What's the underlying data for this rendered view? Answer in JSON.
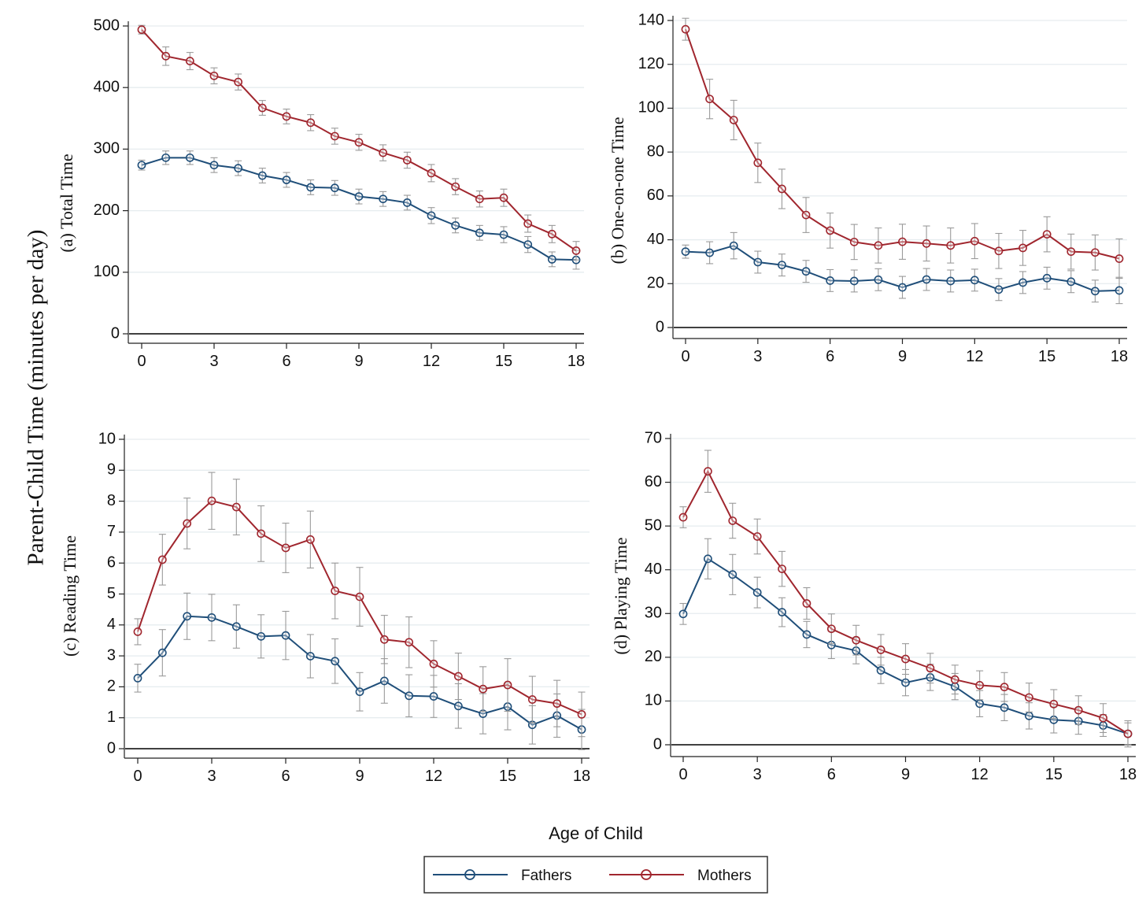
{
  "figure": {
    "y_label": "Parent-Child Time (minutes per day)",
    "x_label": "Age of Child"
  },
  "legend": {
    "placement": "bottom-center",
    "items": [
      {
        "label": "Fathers",
        "color": "#1f4e79"
      },
      {
        "label": "Mothers",
        "color": "#a0262e"
      }
    ]
  },
  "colors": {
    "fathers": "#1f4e79",
    "mothers": "#a0262e",
    "error_bars": "#9a9a9a",
    "gridlines": "#e6ecef",
    "zero_line": "#000000"
  },
  "chart_data": [
    {
      "type": "line",
      "title": "(a) Total Time",
      "x": [
        0,
        1,
        2,
        3,
        4,
        5,
        6,
        7,
        8,
        9,
        10,
        11,
        12,
        13,
        14,
        15,
        16,
        17,
        18
      ],
      "xticks": [
        0,
        3,
        6,
        9,
        12,
        15,
        18
      ],
      "yticks": [
        0,
        100,
        200,
        300,
        400,
        500
      ],
      "xlim": [
        0,
        18
      ],
      "ylim": [
        0,
        500
      ],
      "grid": true,
      "series": [
        {
          "name": "Fathers",
          "values": [
            274,
            286,
            286,
            274,
            269,
            257,
            250,
            238,
            237,
            223,
            219,
            213,
            192,
            176,
            164,
            161,
            145,
            121,
            120
          ],
          "err": [
            8,
            11,
            11,
            12,
            12,
            12,
            12,
            12,
            12,
            12,
            12,
            12,
            13,
            12,
            12,
            13,
            13,
            12,
            15
          ]
        },
        {
          "name": "Mothers",
          "values": [
            494,
            451,
            443,
            419,
            409,
            367,
            353,
            343,
            321,
            311,
            294,
            282,
            261,
            239,
            219,
            221,
            179,
            162,
            135
          ],
          "err": [
            7,
            15,
            14,
            13,
            13,
            12,
            12,
            13,
            13,
            13,
            13,
            13,
            14,
            13,
            13,
            14,
            14,
            14,
            15
          ]
        }
      ]
    },
    {
      "type": "line",
      "title": "(b) One-on-one Time",
      "x": [
        0,
        1,
        2,
        3,
        4,
        5,
        6,
        7,
        8,
        9,
        10,
        11,
        12,
        13,
        14,
        15,
        16,
        17,
        18
      ],
      "xticks": [
        0,
        3,
        6,
        9,
        12,
        15,
        18
      ],
      "yticks": [
        0,
        20,
        40,
        60,
        80,
        100,
        120,
        140
      ],
      "xlim": [
        0,
        18
      ],
      "ylim": [
        0,
        140
      ],
      "grid": true,
      "series": [
        {
          "name": "Fathers",
          "values": [
            34.6,
            34.1,
            37.3,
            29.8,
            28.5,
            25.6,
            21.4,
            21.2,
            21.8,
            18.3,
            21.9,
            21.2,
            21.6,
            17.3,
            20.5,
            22.5,
            20.9,
            16.6,
            16.9
          ],
          "err": [
            3,
            5,
            6,
            5,
            5,
            5,
            5,
            5,
            5,
            5,
            5,
            5,
            5,
            5,
            5,
            5,
            5,
            5,
            6
          ]
        },
        {
          "name": "Mothers",
          "values": [
            136,
            104.2,
            94.6,
            75.1,
            63.2,
            51.3,
            44.2,
            39,
            37.4,
            39.1,
            38.3,
            37.4,
            39.4,
            34.9,
            36.3,
            42.5,
            34.6,
            34.2,
            31.4
          ],
          "err": [
            5,
            9,
            9,
            9,
            9,
            8,
            8,
            8,
            8,
            8,
            8,
            8,
            8,
            8,
            8,
            8,
            8,
            8,
            9
          ]
        }
      ]
    },
    {
      "type": "line",
      "title": "(c) Reading Time",
      "x": [
        0,
        1,
        2,
        3,
        4,
        5,
        6,
        7,
        8,
        9,
        10,
        11,
        12,
        13,
        14,
        15,
        16,
        17,
        18
      ],
      "xticks": [
        0,
        3,
        6,
        9,
        12,
        15,
        18
      ],
      "yticks": [
        0,
        1,
        2,
        3,
        4,
        5,
        6,
        7,
        8,
        9,
        10
      ],
      "xlim": [
        0,
        18
      ],
      "ylim": [
        0,
        10
      ],
      "grid": true,
      "series": [
        {
          "name": "Fathers",
          "values": [
            2.28,
            3.1,
            4.28,
            4.24,
            3.95,
            3.63,
            3.66,
            2.99,
            2.83,
            1.84,
            2.19,
            1.71,
            1.69,
            1.38,
            1.13,
            1.36,
            0.77,
            1.07,
            0.62
          ],
          "err": [
            0.45,
            0.75,
            0.75,
            0.75,
            0.7,
            0.7,
            0.78,
            0.7,
            0.72,
            0.62,
            0.72,
            0.68,
            0.68,
            0.72,
            0.65,
            0.75,
            0.62,
            0.7,
            0.65
          ]
        },
        {
          "name": "Mothers",
          "values": [
            3.78,
            6.11,
            7.28,
            8.01,
            7.81,
            6.95,
            6.49,
            6.76,
            5.1,
            4.91,
            3.53,
            3.44,
            2.74,
            2.34,
            1.93,
            2.06,
            1.59,
            1.46,
            1.11
          ],
          "err": [
            0.42,
            0.82,
            0.82,
            0.92,
            0.9,
            0.9,
            0.8,
            0.92,
            0.9,
            0.95,
            0.78,
            0.82,
            0.75,
            0.75,
            0.72,
            0.85,
            0.75,
            0.75,
            0.72
          ]
        }
      ]
    },
    {
      "type": "line",
      "title": "(d) Playing Time",
      "x": [
        0,
        1,
        2,
        3,
        4,
        5,
        6,
        7,
        8,
        9,
        10,
        11,
        12,
        13,
        14,
        15,
        16,
        17,
        18
      ],
      "xticks": [
        0,
        3,
        6,
        9,
        12,
        15,
        18
      ],
      "yticks": [
        0,
        10,
        20,
        30,
        40,
        50,
        60,
        70
      ],
      "xlim": [
        0,
        18
      ],
      "ylim": [
        0,
        70
      ],
      "grid": true,
      "series": [
        {
          "name": "Fathers",
          "values": [
            29.9,
            42.5,
            38.9,
            34.8,
            30.3,
            25.2,
            22.8,
            21.5,
            17,
            14.2,
            15.4,
            13.3,
            9.4,
            8.5,
            6.6,
            5.7,
            5.4,
            4.4,
            2.5
          ],
          "err": [
            2.4,
            4.6,
            4.6,
            3.5,
            3.3,
            3,
            3.1,
            3,
            3,
            3,
            3,
            3,
            3,
            3,
            3,
            3,
            3,
            2.5,
            2.5
          ]
        },
        {
          "name": "Mothers",
          "values": [
            52,
            62.5,
            51.2,
            47.6,
            40.2,
            32.3,
            26.5,
            23.9,
            21.7,
            19.6,
            17.5,
            14.9,
            13.6,
            13.2,
            10.8,
            9.3,
            7.9,
            6.1,
            2.5
          ],
          "err": [
            2.4,
            4.8,
            4,
            4,
            4,
            3.6,
            3.4,
            3.4,
            3.5,
            3.5,
            3.4,
            3.3,
            3.3,
            3.3,
            3.3,
            3.3,
            3.3,
            3.3,
            3
          ]
        }
      ]
    }
  ]
}
